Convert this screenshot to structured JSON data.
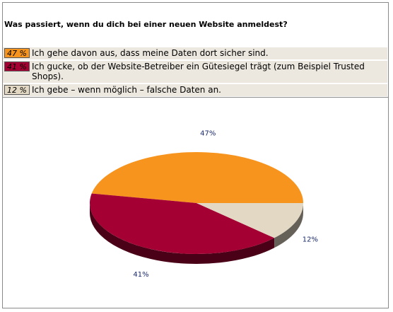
{
  "question": "Was passiert, wenn du dich bei einer neuen Website anmeldest?",
  "colors": {
    "orange": "#f7941d",
    "maroon": "#a50034",
    "beige": "#e2d8c3"
  },
  "chart_data": {
    "type": "pie",
    "title": "",
    "slices": [
      {
        "label": "Ich gehe davon aus, dass meine Daten dort sicher sind.",
        "value": 47,
        "pct_label": "47 %",
        "chart_label": "47%",
        "color": "#f7941d"
      },
      {
        "label": "Ich gucke, ob der Website-Betreiber ein Gütesiegel trägt (zum Beispiel Trusted Shops).",
        "value": 41,
        "pct_label": "41 %",
        "chart_label": "41%",
        "color": "#a50034"
      },
      {
        "label": "Ich gebe – wenn möglich – falsche Daten an.",
        "value": 12,
        "pct_label": "12 %",
        "chart_label": "12%",
        "color": "#e2d8c3"
      }
    ]
  }
}
